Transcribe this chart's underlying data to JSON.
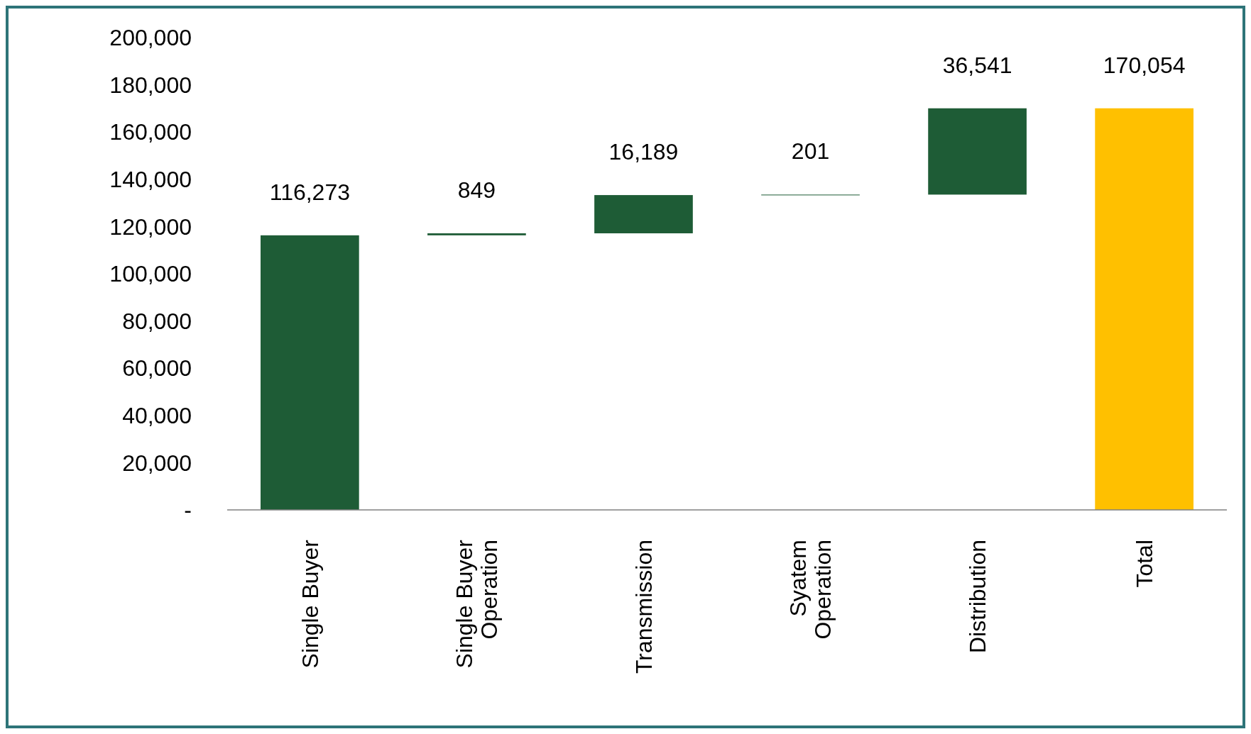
{
  "chart_data": {
    "type": "bar",
    "categories": [
      "Single Buyer",
      "Single Buyer Operation",
      "Transmission",
      "Syatem Operation",
      "Distribution",
      "Total"
    ],
    "values": [
      116273,
      849,
      16189,
      201,
      36541,
      170054
    ],
    "base": [
      0,
      116273,
      117122,
      133311,
      133512,
      0
    ],
    "colors": [
      "#1e5c36",
      "#1e5c36",
      "#1e5c36",
      "#1e5c36",
      "#1e5c36",
      "#ffc000"
    ],
    "ylim": [
      0,
      200000
    ],
    "yticks": [
      {
        "value": 0,
        "label": "-"
      },
      {
        "value": 20000,
        "label": "20,000"
      },
      {
        "value": 40000,
        "label": "40,000"
      },
      {
        "value": 60000,
        "label": "60,000"
      },
      {
        "value": 80000,
        "label": "80,000"
      },
      {
        "value": 100000,
        "label": "100,000"
      },
      {
        "value": 120000,
        "label": "120,000"
      },
      {
        "value": 140000,
        "label": "140,000"
      },
      {
        "value": 160000,
        "label": "160,000"
      },
      {
        "value": 180000,
        "label": "180,000"
      },
      {
        "value": 200000,
        "label": "200,000"
      }
    ],
    "value_labels": [
      "116,273",
      "849",
      "16,189",
      "201",
      "36,541",
      "170,054"
    ],
    "grid": false
  }
}
